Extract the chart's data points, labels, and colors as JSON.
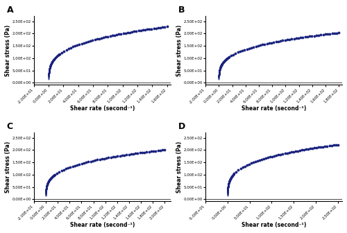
{
  "panels": [
    "A",
    "B",
    "C",
    "D"
  ],
  "dot_color": "#1a237e",
  "dot_size": 3.5,
  "ylabel": "Shear stress (Pa)",
  "xlabel": "Shear rate (second⁻¹)",
  "panels_config": [
    {
      "label": "A",
      "xmin": -20,
      "xmax": 165,
      "ymin": -8,
      "ymax": 270,
      "K": 55,
      "n": 0.28,
      "x_dense_end": 160,
      "xticks": [
        -20,
        0,
        20,
        40,
        60,
        80,
        100,
        120,
        140,
        160
      ],
      "yticks": [
        0,
        50,
        100,
        150,
        200,
        250
      ]
    },
    {
      "label": "B",
      "xmin": -20,
      "xmax": 185,
      "ymin": -8,
      "ymax": 270,
      "K": 50,
      "n": 0.27,
      "x_dense_end": 180,
      "xticks": [
        -20,
        0,
        20,
        40,
        60,
        80,
        100,
        120,
        140,
        160,
        180
      ],
      "yticks": [
        0,
        50,
        100,
        150,
        200,
        250
      ]
    },
    {
      "label": "C",
      "xmin": -20,
      "xmax": 210,
      "ymin": -8,
      "ymax": 270,
      "K": 48,
      "n": 0.27,
      "x_dense_end": 200,
      "xticks": [
        -20,
        0,
        20,
        40,
        60,
        80,
        100,
        120,
        140,
        160,
        180,
        200
      ],
      "yticks": [
        0,
        50,
        100,
        150,
        200,
        250
      ]
    },
    {
      "label": "D",
      "xmin": -50,
      "xmax": 260,
      "ymin": -8,
      "ymax": 270,
      "K": 50,
      "n": 0.27,
      "x_dense_end": 250,
      "xticks": [
        -50,
        0,
        50,
        100,
        150,
        200,
        250
      ],
      "yticks": [
        0,
        50,
        100,
        150,
        200,
        250
      ]
    }
  ]
}
